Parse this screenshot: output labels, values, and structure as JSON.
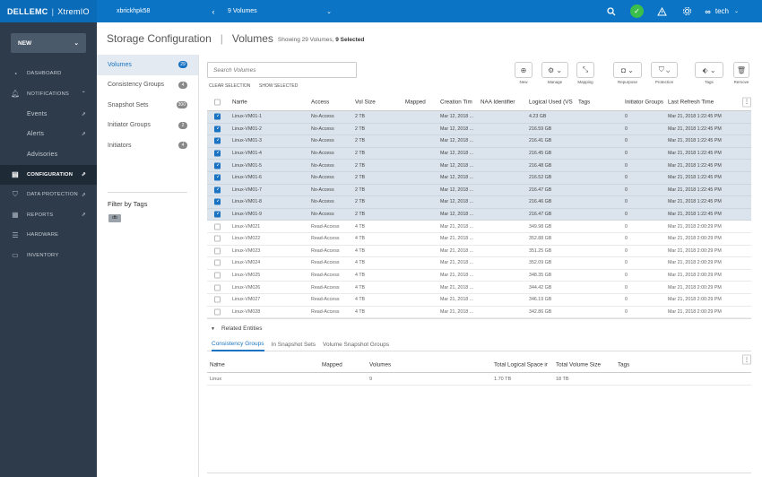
{
  "topbar": {
    "brand_left": "DELLEMC",
    "brand_right": "XtremIO",
    "cluster": "xbrickhpk58",
    "volume_selector": "9 Volumes",
    "user": "tech",
    "avatar": "∞"
  },
  "nav": {
    "new_label": "NEW",
    "items": [
      {
        "label": "DASHBOARD",
        "icon": "dashboard-icon"
      },
      {
        "label": "NOTIFICATIONS",
        "icon": "bell-icon"
      },
      {
        "label": "Events"
      },
      {
        "label": "Alerts"
      },
      {
        "label": "Advisories"
      },
      {
        "label": "CONFIGURATION",
        "icon": "database-icon"
      },
      {
        "label": "DATA PROTECTION",
        "icon": "shield-icon"
      },
      {
        "label": "REPORTS",
        "icon": "reports-icon"
      },
      {
        "label": "HARDWARE",
        "icon": "hardware-icon"
      },
      {
        "label": "INVENTORY",
        "icon": "inventory-icon"
      }
    ]
  },
  "header": {
    "title": "Storage Configuration",
    "subtitle": "Volumes",
    "showing_prefix": "Showing 29 Volumes,",
    "selected": "9 Selected"
  },
  "objects": [
    {
      "label": "Volumes",
      "count": "29"
    },
    {
      "label": "Consistency Groups",
      "count": "4"
    },
    {
      "label": "Snapshot Sets",
      "count": "300"
    },
    {
      "label": "Initiator Groups",
      "count": "2"
    },
    {
      "label": "Initiators",
      "count": "4"
    }
  ],
  "filter": {
    "title": "Filter by Tags",
    "tag": "db"
  },
  "toolbar": {
    "search_placeholder": "Search Volumes",
    "clear_selection": "CLEAR SELECTION",
    "show_selected": "SHOW SELECTED",
    "new": "New",
    "manage": "Manage",
    "mapping": "Mapping",
    "repurpose": "Repurpose",
    "protection": "Protection",
    "tags": "Tags",
    "remove": "Remove"
  },
  "table": {
    "headers": {
      "name": "Name",
      "access": "Access",
      "vol_size": "Vol Size",
      "mapped": "Mapped",
      "creation_time": "Creation Tim",
      "naa": "NAA Identifier",
      "logical_used": "Logical Used (VS",
      "tags": "Tags",
      "initiator_groups": "Initiator Groups",
      "last_refresh": "Last Refresh Time"
    },
    "rows": [
      {
        "name": "Linux-VM01-1",
        "access": "No-Access",
        "size": "2 TB",
        "ct": "Mar 12, 2018 ...",
        "lu": "4.23 GB",
        "ig": "0",
        "lrt": "Mar 21, 2018 1:22:45 PM",
        "selected": true
      },
      {
        "name": "Linux-VM01-2",
        "access": "No-Access",
        "size": "2 TB",
        "ct": "Mar 12, 2018 ...",
        "lu": "216.59 GB",
        "ig": "0",
        "lrt": "Mar 21, 2018 1:22:45 PM",
        "selected": true
      },
      {
        "name": "Linux-VM01-3",
        "access": "No-Access",
        "size": "2 TB",
        "ct": "Mar 12, 2018 ...",
        "lu": "216.41 GB",
        "ig": "0",
        "lrt": "Mar 21, 2018 1:22:45 PM",
        "selected": true
      },
      {
        "name": "Linux-VM01-4",
        "access": "No-Access",
        "size": "2 TB",
        "ct": "Mar 12, 2018 ...",
        "lu": "216.45 GB",
        "ig": "0",
        "lrt": "Mar 21, 2018 1:22:45 PM",
        "selected": true
      },
      {
        "name": "Linux-VM01-5",
        "access": "No-Access",
        "size": "2 TB",
        "ct": "Mar 12, 2018 ...",
        "lu": "216.48 GB",
        "ig": "0",
        "lrt": "Mar 21, 2018 1:22:45 PM",
        "selected": true
      },
      {
        "name": "Linux-VM01-6",
        "access": "No-Access",
        "size": "2 TB",
        "ct": "Mar 12, 2018 ...",
        "lu": "216.52 GB",
        "ig": "0",
        "lrt": "Mar 21, 2018 1:22:45 PM",
        "selected": true
      },
      {
        "name": "Linux-VM01-7",
        "access": "No-Access",
        "size": "2 TB",
        "ct": "Mar 12, 2018 ...",
        "lu": "216.47 GB",
        "ig": "0",
        "lrt": "Mar 21, 2018 1:22:45 PM",
        "selected": true
      },
      {
        "name": "Linux-VM01-8",
        "access": "No-Access",
        "size": "2 TB",
        "ct": "Mar 12, 2018 ...",
        "lu": "216.46 GB",
        "ig": "0",
        "lrt": "Mar 21, 2018 1:22:45 PM",
        "selected": true
      },
      {
        "name": "Linux-VM01-9",
        "access": "No-Access",
        "size": "2 TB",
        "ct": "Mar 12, 2018 ...",
        "lu": "216.47 GB",
        "ig": "0",
        "lrt": "Mar 21, 2018 1:22:45 PM",
        "selected": true
      },
      {
        "name": "Linux-VM021",
        "access": "Read-Access",
        "size": "4 TB",
        "ct": "Mar 21, 2018 ...",
        "lu": "349.98 GB",
        "ig": "0",
        "lrt": "Mar 21, 2018 2:00:29 PM",
        "selected": false
      },
      {
        "name": "Linux-VM022",
        "access": "Read-Access",
        "size": "4 TB",
        "ct": "Mar 21, 2018 ...",
        "lu": "352.88 GB",
        "ig": "0",
        "lrt": "Mar 21, 2018 2:00:29 PM",
        "selected": false
      },
      {
        "name": "Linux-VM023",
        "access": "Read-Access",
        "size": "4 TB",
        "ct": "Mar 21, 2018 ...",
        "lu": "351.25 GB",
        "ig": "0",
        "lrt": "Mar 21, 2018 2:00:29 PM",
        "selected": false
      },
      {
        "name": "Linux-VM024",
        "access": "Read-Access",
        "size": "4 TB",
        "ct": "Mar 21, 2018 ...",
        "lu": "352.09 GB",
        "ig": "0",
        "lrt": "Mar 21, 2018 2:00:29 PM",
        "selected": false
      },
      {
        "name": "Linux-VM025",
        "access": "Read-Access",
        "size": "4 TB",
        "ct": "Mar 21, 2018 ...",
        "lu": "348.35 GB",
        "ig": "0",
        "lrt": "Mar 21, 2018 2:00:29 PM",
        "selected": false
      },
      {
        "name": "Linux-VM026",
        "access": "Read-Access",
        "size": "4 TB",
        "ct": "Mar 21, 2018 ...",
        "lu": "344.42 GB",
        "ig": "0",
        "lrt": "Mar 21, 2018 2:00:29 PM",
        "selected": false
      },
      {
        "name": "Linux-VM027",
        "access": "Read-Access",
        "size": "4 TB",
        "ct": "Mar 21, 2018 ...",
        "lu": "346.19 GB",
        "ig": "0",
        "lrt": "Mar 21, 2018 2:00:29 PM",
        "selected": false
      },
      {
        "name": "Linux-VM028",
        "access": "Read-Access",
        "size": "4 TB",
        "ct": "Mar 21, 2018 ...",
        "lu": "342.86 GB",
        "ig": "0",
        "lrt": "Mar 21, 2018 2:00:29 PM",
        "selected": false
      }
    ]
  },
  "related": {
    "title": "Related Entities",
    "tabs": [
      "Consistency Groups",
      "In Snapshot Sets",
      "Volume Snapshot Groups"
    ],
    "headers": {
      "name": "Name",
      "mapped": "Mapped",
      "volumes": "Volumes",
      "total_logical": "Total Logical Space ir",
      "total_volume": "Total Volume Size",
      "tags": "Tags"
    },
    "rows": [
      {
        "name": "Linux",
        "mapped": "",
        "volumes": "9",
        "tls": "1.70 TB",
        "tvs": "18 TB",
        "tags": ""
      }
    ]
  },
  "colors": {
    "accent": "#1a73c2",
    "topbar": "#0b74c4",
    "nav_bg": "#2d3b4a",
    "ok": "#3cbf4a",
    "selected_row": "#dbe4ec"
  }
}
